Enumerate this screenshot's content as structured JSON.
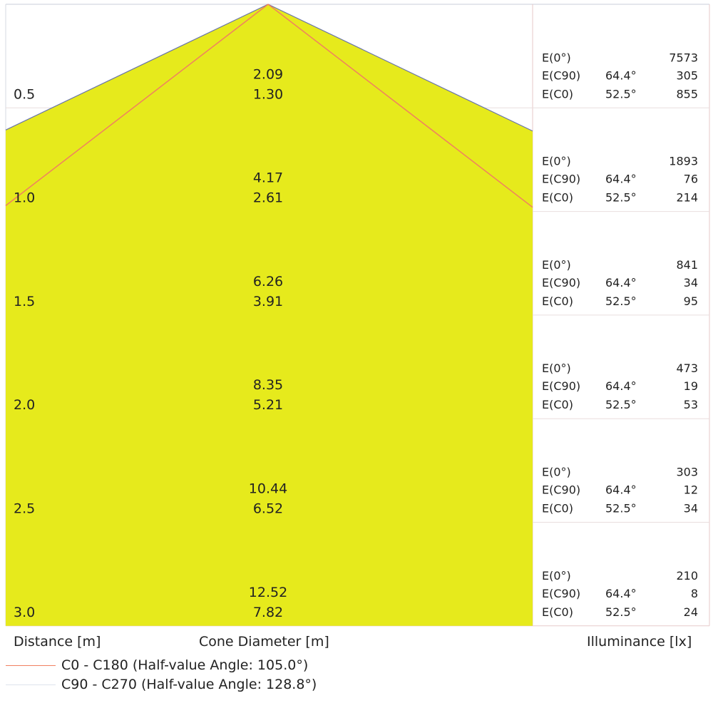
{
  "diagram": {
    "peak_diameters_label_note": "",
    "colors": {
      "cone_fill": "#e6ea1c",
      "c0_line": "#f08060",
      "c90_line": "#6a75a8",
      "grid_line": "#e7c9c9"
    },
    "rows": [
      {
        "distance": "0.5",
        "d_c90": "2.09",
        "d_c0": "1.30",
        "e0_label": "E(0°)",
        "e0_value": "7573",
        "ec90_label": "E(C90)",
        "ec90_angle": "64.4°",
        "ec90_value": "305",
        "ec0_label": "E(C0)",
        "ec0_angle": "52.5°",
        "ec0_value": "855"
      },
      {
        "distance": "1.0",
        "d_c90": "4.17",
        "d_c0": "2.61",
        "e0_label": "E(0°)",
        "e0_value": "1893",
        "ec90_label": "E(C90)",
        "ec90_angle": "64.4°",
        "ec90_value": "76",
        "ec0_label": "E(C0)",
        "ec0_angle": "52.5°",
        "ec0_value": "214"
      },
      {
        "distance": "1.5",
        "d_c90": "6.26",
        "d_c0": "3.91",
        "e0_label": "E(0°)",
        "e0_value": "841",
        "ec90_label": "E(C90)",
        "ec90_angle": "64.4°",
        "ec90_value": "34",
        "ec0_label": "E(C0)",
        "ec0_angle": "52.5°",
        "ec0_value": "95"
      },
      {
        "distance": "2.0",
        "d_c90": "8.35",
        "d_c0": "5.21",
        "e0_label": "E(0°)",
        "e0_value": "473",
        "ec90_label": "E(C90)",
        "ec90_angle": "64.4°",
        "ec90_value": "19",
        "ec0_label": "E(C0)",
        "ec0_angle": "52.5°",
        "ec0_value": "53"
      },
      {
        "distance": "2.5",
        "d_c90": "10.44",
        "d_c0": "6.52",
        "e0_label": "E(0°)",
        "e0_value": "303",
        "ec90_label": "E(C90)",
        "ec90_angle": "64.4°",
        "ec90_value": "12",
        "ec0_label": "E(C0)",
        "ec0_angle": "52.5°",
        "ec0_value": "34"
      },
      {
        "distance": "3.0",
        "d_c90": "12.52",
        "d_c0": "7.82",
        "e0_label": "E(0°)",
        "e0_value": "210",
        "ec90_label": "E(C90)",
        "ec90_angle": "64.4°",
        "ec90_value": "8",
        "ec0_label": "E(C0)",
        "ec0_angle": "52.5°",
        "ec0_value": "24"
      }
    ]
  },
  "footer": {
    "distance_label": "Distance [m]",
    "cone_label": "Cone Diameter [m]",
    "illuminance_label": "Illuminance [lx]"
  },
  "legend": {
    "c0": "C0 - C180 (Half-value Angle: 105.0°)",
    "c90": "C90 - C270 (Half-value Angle: 128.8°)"
  }
}
